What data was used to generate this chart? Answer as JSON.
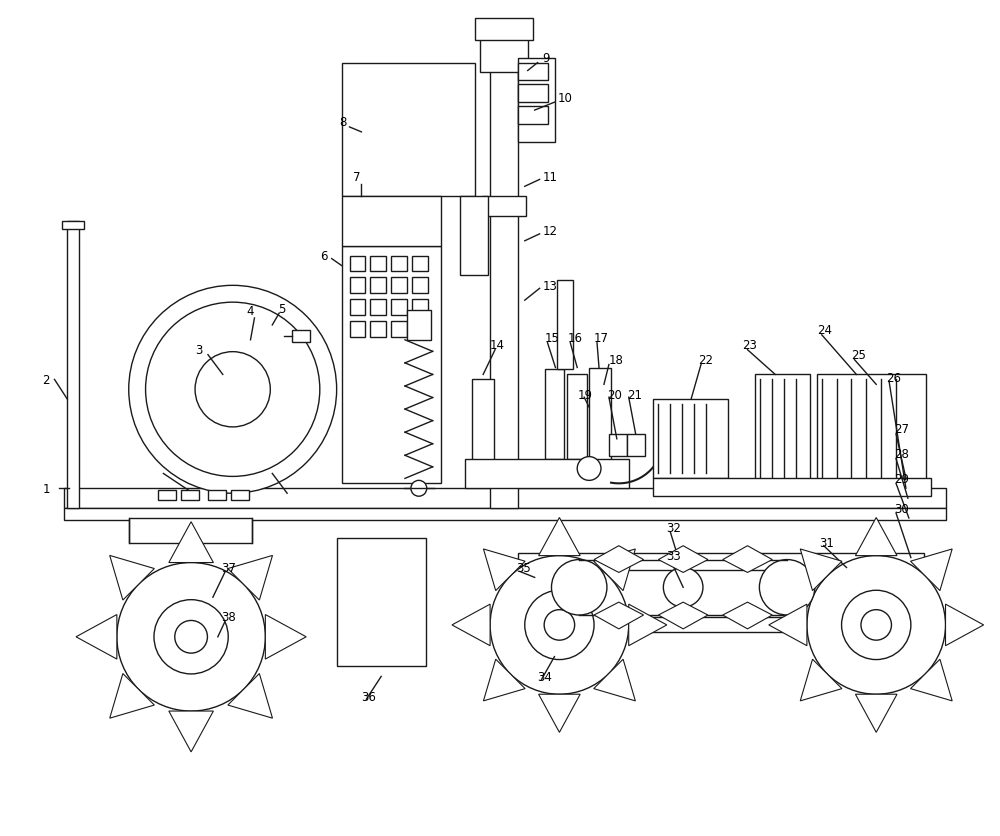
{
  "background_color": "#ffffff",
  "line_color": "#1a1a1a",
  "line_width": 1.0,
  "label_fontsize": 8.5,
  "fig_width": 10.0,
  "fig_height": 8.37
}
